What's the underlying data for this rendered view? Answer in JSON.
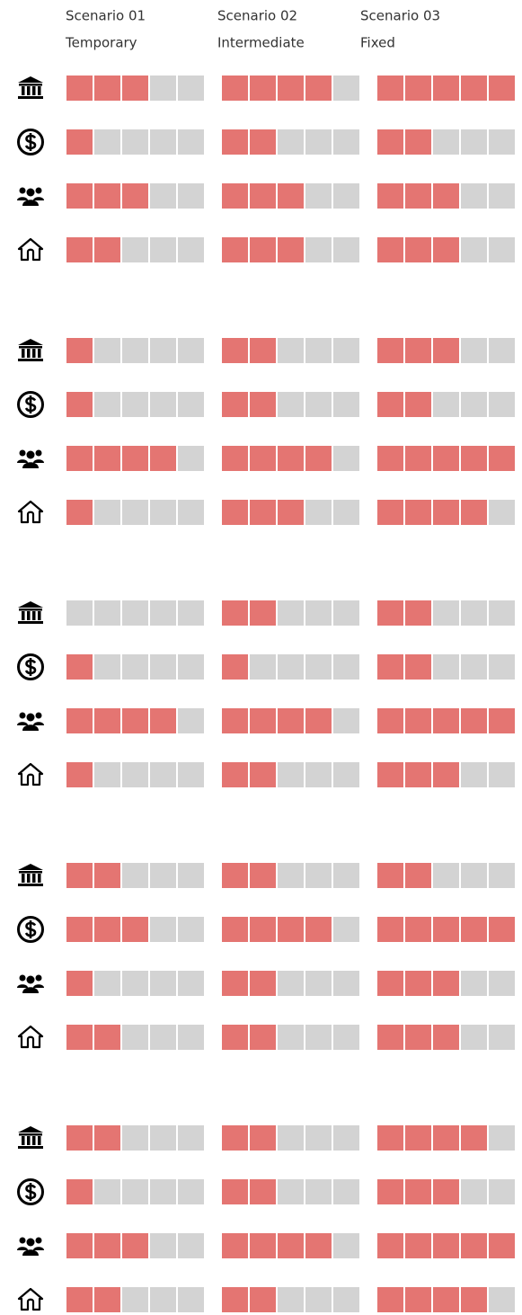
{
  "chart_data": {
    "type": "rating-grid",
    "scenarios": [
      {
        "name": "Scenario 01",
        "label": "Temporary"
      },
      {
        "name": "Scenario 02",
        "label": "Intermediate"
      },
      {
        "name": "Scenario 03",
        "label": "Fixed"
      }
    ],
    "max": 5,
    "colors": {
      "filled": "#e47572",
      "empty": "#d3d3d3"
    },
    "groups": [
      {
        "rows": [
          {
            "icon": "bank",
            "values": [
              3,
              4,
              5
            ]
          },
          {
            "icon": "dollar",
            "values": [
              1,
              2,
              2
            ]
          },
          {
            "icon": "people",
            "values": [
              3,
              3,
              3
            ]
          },
          {
            "icon": "house",
            "values": [
              2,
              3,
              3
            ]
          }
        ]
      },
      {
        "rows": [
          {
            "icon": "bank",
            "values": [
              1,
              2,
              3
            ]
          },
          {
            "icon": "dollar",
            "values": [
              1,
              2,
              2
            ]
          },
          {
            "icon": "people",
            "values": [
              4,
              4,
              5
            ]
          },
          {
            "icon": "house",
            "values": [
              1,
              3,
              4
            ]
          }
        ]
      },
      {
        "rows": [
          {
            "icon": "bank",
            "values": [
              0,
              2,
              2
            ]
          },
          {
            "icon": "dollar",
            "values": [
              1,
              1,
              2
            ]
          },
          {
            "icon": "people",
            "values": [
              4,
              4,
              5
            ]
          },
          {
            "icon": "house",
            "values": [
              1,
              2,
              3
            ]
          }
        ]
      },
      {
        "rows": [
          {
            "icon": "bank",
            "values": [
              2,
              2,
              2
            ]
          },
          {
            "icon": "dollar",
            "values": [
              3,
              4,
              5
            ]
          },
          {
            "icon": "people",
            "values": [
              1,
              2,
              3
            ]
          },
          {
            "icon": "house",
            "values": [
              2,
              2,
              3
            ]
          }
        ]
      },
      {
        "rows": [
          {
            "icon": "bank",
            "values": [
              2,
              2,
              4
            ]
          },
          {
            "icon": "dollar",
            "values": [
              1,
              2,
              3
            ]
          },
          {
            "icon": "people",
            "values": [
              3,
              4,
              5
            ]
          },
          {
            "icon": "house",
            "values": [
              2,
              2,
              4
            ]
          }
        ]
      }
    ]
  }
}
